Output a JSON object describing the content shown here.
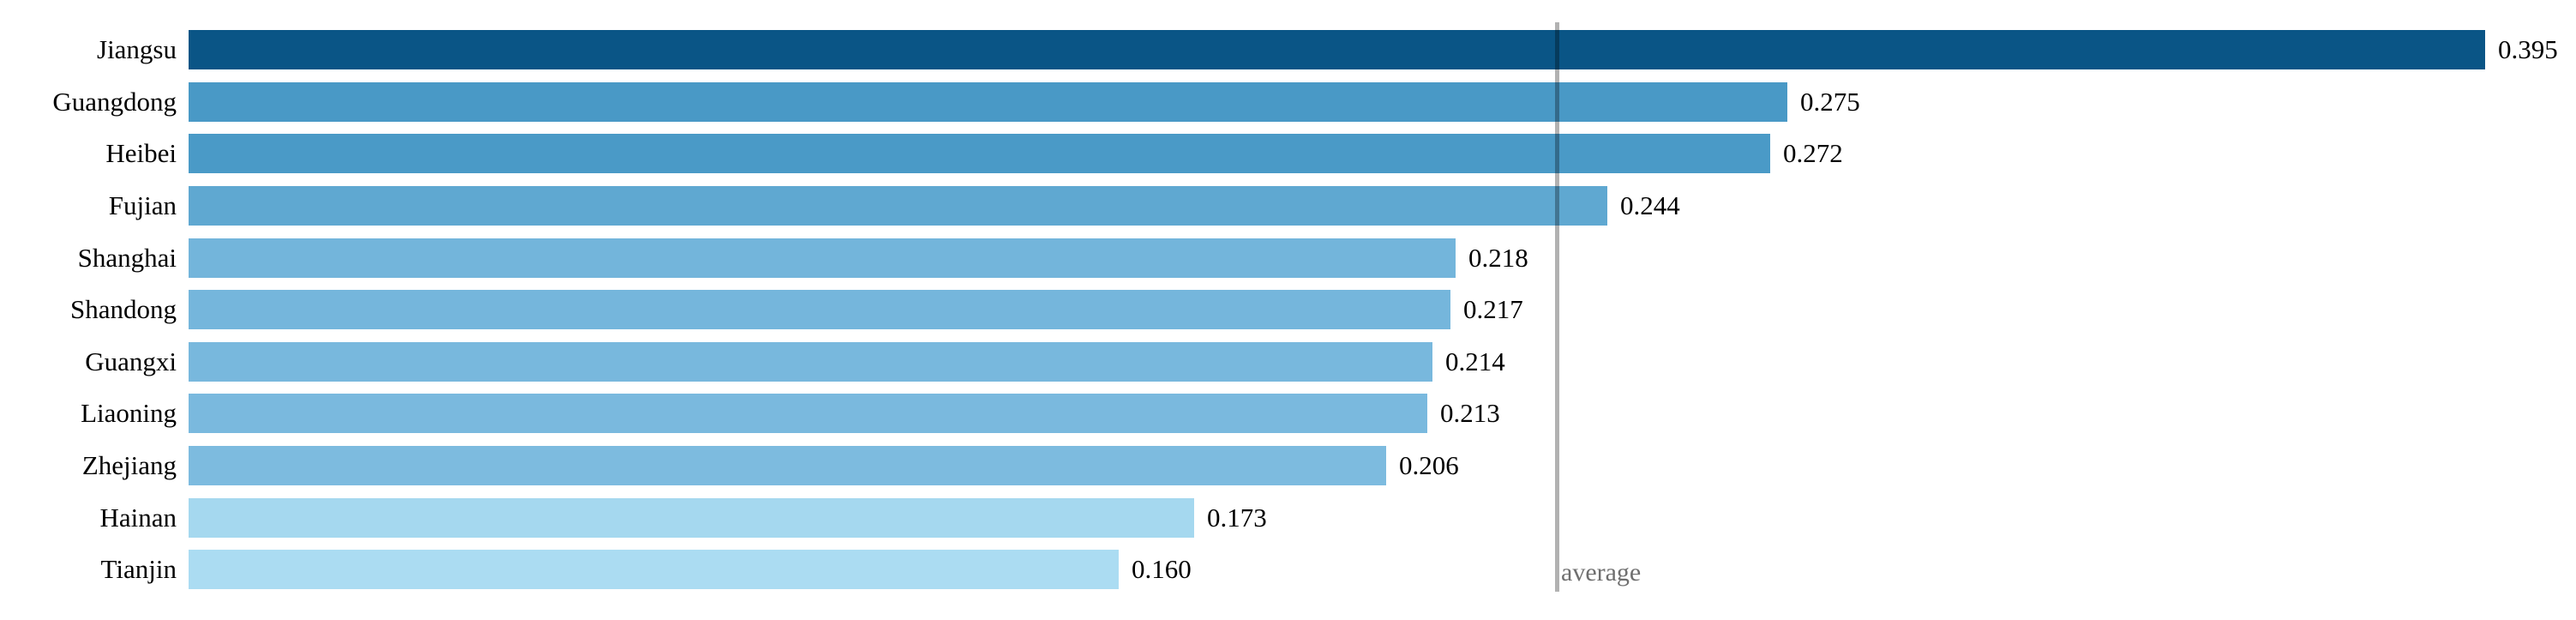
{
  "chart_data": {
    "type": "bar",
    "orientation": "horizontal",
    "title": "",
    "xlabel": "",
    "ylabel": "",
    "grid": false,
    "legend": null,
    "xlim": [
      0,
      0.41
    ],
    "categories": [
      "Jiangsu",
      "Guangdong",
      "Heibei",
      "Fujian",
      "Shanghai",
      "Shandong",
      "Guangxi",
      "Liaoning",
      "Zhejiang",
      "Hainan",
      "Tianjin"
    ],
    "values": [
      0.395,
      0.275,
      0.272,
      0.244,
      0.218,
      0.217,
      0.214,
      0.213,
      0.206,
      0.173,
      0.16
    ],
    "value_labels": [
      "0.395",
      "0.275",
      "0.272",
      "0.244",
      "0.218",
      "0.217",
      "0.214",
      "0.213",
      "0.206",
      "0.173",
      "0.160"
    ],
    "bar_colors": [
      "#0A5586",
      "#4999C6",
      "#4A9AC7",
      "#5FA8D1",
      "#73B5DB",
      "#75B6DC",
      "#78B8DD",
      "#7AB9DE",
      "#7DBBDF",
      "#A5D8EF",
      "#ABDCF2"
    ],
    "reference_line": {
      "label": "average",
      "value": 0.235,
      "line_color_rgba": "rgba(0,0,0,0.30)",
      "label_color": "#6f6f6f"
    },
    "text_color": "#000000",
    "background_color": "#ffffff"
  }
}
